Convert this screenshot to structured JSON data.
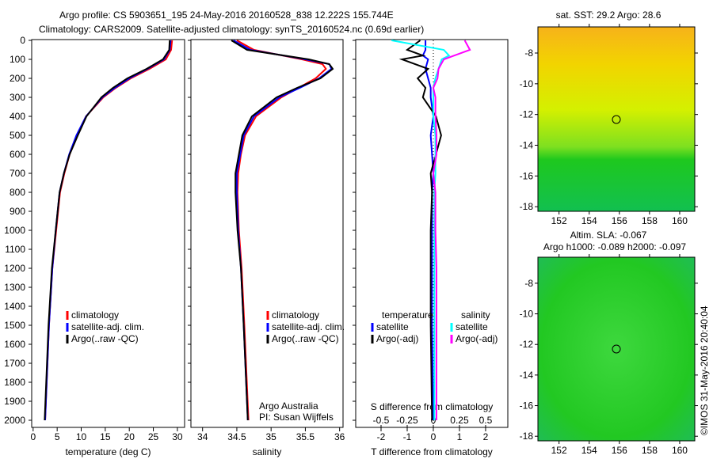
{
  "title_line1": "Argo profile: CS 5903651_195 24-May-2016 20160528_838 12.222S 155.744E",
  "title_line2": "Climatology: CARS2009. Satellite-adjusted climatology: synTS_20160524.nc (0.69d earlier)",
  "credit": "©IMOS 31-May-2016 20:40:04",
  "colors": {
    "climatology": "#ff0000",
    "satellite": "#0000ff",
    "argo": "#000000",
    "sal_sat": "#00ffff",
    "sal_argo": "#ff00ff"
  },
  "chart_data": [
    {
      "type": "line",
      "xlabel": "temperature (deg C)",
      "xlim": [
        -0.3,
        31.5
      ],
      "ylim": [
        0,
        2040
      ],
      "xticks": [
        "0",
        "5",
        "10",
        "15",
        "20",
        "25",
        "30"
      ],
      "yticks": [
        "0",
        "100",
        "200",
        "300",
        "400",
        "500",
        "600",
        "700",
        "800",
        "900",
        "1000",
        "1100",
        "1200",
        "1300",
        "1400",
        "1500",
        "1600",
        "1700",
        "1800",
        "1900",
        "2000"
      ],
      "depth": [
        0,
        50,
        100,
        150,
        200,
        250,
        300,
        400,
        500,
        600,
        700,
        800,
        1000,
        1200,
        1500,
        2000
      ],
      "series": [
        {
          "name": "climatology",
          "values": [
            28.9,
            28.7,
            27.6,
            24.2,
            20.3,
            17.2,
            14.6,
            11.0,
            9.1,
            7.6,
            6.5,
            5.6,
            4.8,
            4.0,
            3.3,
            2.5
          ]
        },
        {
          "name": "satellite-adj. clim.",
          "values": [
            28.6,
            28.4,
            27.2,
            23.8,
            20.0,
            17.0,
            14.4,
            11.0,
            9.0,
            7.5,
            6.4,
            5.5,
            4.7,
            4.0,
            3.3,
            2.5
          ]
        },
        {
          "name": "Argo(..raw -QC)",
          "values": [
            28.4,
            28.3,
            27.0,
            23.6,
            19.6,
            16.6,
            14.2,
            11.1,
            9.3,
            7.6,
            6.4,
            5.5,
            4.7,
            3.9,
            3.2,
            2.4
          ]
        }
      ],
      "legend": [
        "climatology",
        "satellite-adj. clim.",
        "Argo(..raw -QC)"
      ]
    },
    {
      "type": "line",
      "xlabel": "salinity",
      "xlim": [
        33.83,
        36.05
      ],
      "ylim": [
        0,
        2040
      ],
      "xticks": [
        "34",
        "34.5",
        "35",
        "35.5",
        "36"
      ],
      "depth": [
        0,
        50,
        100,
        125,
        150,
        200,
        250,
        300,
        400,
        500,
        600,
        700,
        800,
        1000,
        1200,
        1500,
        2000
      ],
      "series": [
        {
          "name": "climatology",
          "values": [
            34.5,
            34.75,
            35.45,
            35.75,
            35.8,
            35.65,
            35.4,
            35.15,
            34.78,
            34.62,
            34.56,
            34.52,
            34.51,
            34.53,
            34.57,
            34.61,
            34.67
          ]
        },
        {
          "name": "satellite-adj. clim.",
          "values": [
            34.45,
            34.7,
            35.5,
            35.85,
            35.88,
            35.7,
            35.42,
            35.12,
            34.75,
            34.6,
            34.55,
            34.5,
            34.5,
            34.52,
            34.56,
            34.6,
            34.66
          ]
        },
        {
          "name": "Argo(..raw -QC)",
          "values": [
            34.42,
            34.65,
            35.55,
            35.85,
            35.9,
            35.72,
            35.38,
            35.08,
            34.72,
            34.58,
            34.53,
            34.48,
            34.48,
            34.51,
            34.56,
            34.6,
            34.66
          ]
        }
      ],
      "legend": [
        "climatology",
        "satellite-adj. clim.",
        "Argo(..raw -QC)"
      ],
      "annotation": [
        "Argo Australia",
        "PI: Susan Wijffels"
      ]
    },
    {
      "type": "line",
      "xlabel": "T difference from climatology",
      "xlabel2": "S difference from climatology",
      "xlim": [
        -2.97,
        2.85
      ],
      "xticks": [
        "-2",
        "-1",
        "0",
        "1",
        "2"
      ],
      "xticks2": [
        "-0.5",
        "-0.25",
        "0",
        "0.25",
        "0.5"
      ],
      "ylim": [
        0,
        2040
      ],
      "depth": [
        0,
        50,
        80,
        100,
        150,
        200,
        250,
        300,
        400,
        500,
        600,
        700,
        800,
        1000,
        1200,
        1500,
        2000
      ],
      "series": [
        {
          "name": "temperature satellite",
          "values": [
            -0.3,
            -0.3,
            -0.4,
            -0.2,
            -0.3,
            -0.2,
            -0.1,
            -0.1,
            0,
            -0.1,
            -0.05,
            0,
            -0.05,
            -0.05,
            -0.05,
            -0.05,
            0
          ]
        },
        {
          "name": "temperature Argo(-adj)",
          "values": [
            -0.5,
            -1.0,
            -0.4,
            -1.2,
            -0.2,
            -0.6,
            -0.3,
            -0.4,
            0.1,
            0.3,
            0.1,
            -0.1,
            -0.05,
            -0.1,
            -0.1,
            -0.1,
            -0.05
          ]
        },
        {
          "name": "salinity satellite",
          "values": [
            -0.4,
            0.1,
            0.15,
            0.08,
            0.05,
            0.02,
            0,
            0,
            0,
            0.02,
            0.02,
            0.02,
            0.01,
            0.01,
            0.01,
            0.01,
            0.01
          ]
        },
        {
          "name": "salinity Argo(-adj)",
          "values": [
            0.3,
            0.35,
            0.2,
            0.1,
            0.05,
            0.04,
            0.0,
            0.02,
            0.02,
            0.03,
            0.03,
            0,
            0.02,
            0.02,
            0.03,
            0.03,
            0.03
          ]
        }
      ],
      "legend_t": [
        "temperature",
        "satellite",
        "Argo(-adj)"
      ],
      "legend_s": [
        "salinity",
        "satellite",
        "Argo(-adj)"
      ]
    }
  ],
  "maps": [
    {
      "title": "sat. SST: 29.2 Argo: 28.6",
      "lat_ticks": [
        "-8",
        "-10",
        "-12",
        "-14",
        "-16",
        "-18"
      ],
      "lon_ticks": [
        "152",
        "154",
        "156",
        "158",
        "160"
      ]
    },
    {
      "title1": "Altim. SLA: -0.067",
      "title2": "Argo h1000: -0.089 h2000: -0.097",
      "lat_ticks": [
        "-8",
        "-10",
        "-12",
        "-14",
        "-16",
        "-18"
      ],
      "lon_ticks": [
        "152",
        "154",
        "156",
        "158",
        "160"
      ]
    }
  ]
}
